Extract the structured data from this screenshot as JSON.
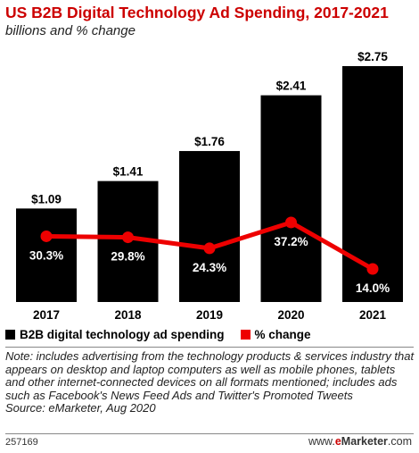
{
  "header": {
    "title": "US B2B Digital Technology Ad Spending, 2017-2021",
    "subtitle": "billions and % change"
  },
  "chart_data": {
    "type": "bar",
    "categories": [
      "2017",
      "2018",
      "2019",
      "2020",
      "2021"
    ],
    "series": [
      {
        "name": "B2B digital technology ad spending",
        "type": "bar",
        "color": "#000000",
        "values": [
          1.09,
          1.41,
          1.76,
          2.41,
          2.75
        ],
        "labels": [
          "$1.09",
          "$1.41",
          "$1.76",
          "$2.41",
          "$2.75"
        ]
      },
      {
        "name": "% change",
        "type": "line",
        "color": "#ee0000",
        "values": [
          30.3,
          29.8,
          24.3,
          37.2,
          14.0
        ],
        "labels": [
          "30.3%",
          "29.8%",
          "24.3%",
          "37.2%",
          "14.0%"
        ]
      }
    ],
    "legend": {
      "position": "bottom-left",
      "items": [
        {
          "label": "B2B digital technology ad spending",
          "color": "#000000"
        },
        {
          "label": "% change",
          "color": "#ee0000"
        }
      ]
    }
  },
  "note": "Note: includes advertising from the technology products & services industry that appears on desktop and laptop computers as well as mobile phones, tablets and other internet-connected devices on all formats mentioned; includes ads such as Facebook's News Feed Ads and Twitter's Promoted Tweets",
  "source": "Source: eMarketer, Aug 2020",
  "footer": {
    "chart_id": "257169",
    "brand_prefix": "www.",
    "brand_e": "e",
    "brand_marketer": "Marketer",
    "brand_suffix": ".com"
  }
}
